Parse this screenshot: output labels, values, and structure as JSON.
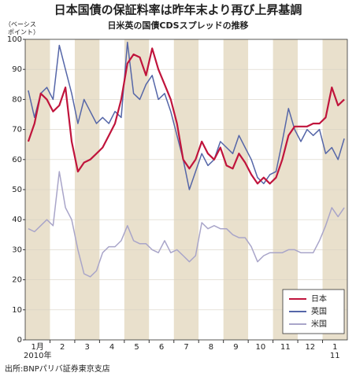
{
  "chart_data": {
    "type": "line",
    "title": "日本国債の保証料率は昨年末より再び上昇基調",
    "subtitle": "日米英の国債CDSスプレッドの推移",
    "ylabel": [
      "（ベーシス",
      "ポイント）"
    ],
    "x_labels": [
      "1月",
      "2",
      "3",
      "4",
      "5",
      "6",
      "7",
      "8",
      "9",
      "10",
      "11",
      "12",
      "1"
    ],
    "year_labels": [
      "2010年",
      "11"
    ],
    "points_per_month": 4,
    "source": "出所:BNPパリバ証券東京支店",
    "ylim": [
      0,
      100
    ],
    "yticks": [
      0,
      10,
      20,
      30,
      40,
      50,
      60,
      70,
      80,
      90,
      100
    ],
    "grid": true,
    "legend": "lower right",
    "series": [
      {
        "name": "日本",
        "color": "#c0143c",
        "values": [
          66,
          72,
          82,
          80,
          76,
          78,
          84,
          66,
          56,
          59,
          60,
          62,
          64,
          68,
          72,
          80,
          92,
          95,
          94,
          88,
          97,
          90,
          85,
          80,
          72,
          60,
          57,
          60,
          66,
          62,
          60,
          64,
          58,
          57,
          62,
          59,
          55,
          52,
          54,
          52,
          54,
          60,
          68,
          71,
          71,
          71,
          72,
          72,
          74,
          84,
          78,
          80
        ]
      },
      {
        "name": "英国",
        "color": "#5566a8",
        "values": [
          83,
          74,
          82,
          84,
          80,
          98,
          90,
          82,
          72,
          80,
          76,
          72,
          74,
          72,
          76,
          74,
          99,
          82,
          80,
          85,
          88,
          80,
          82,
          76,
          68,
          60,
          50,
          56,
          62,
          58,
          60,
          66,
          64,
          62,
          68,
          64,
          60,
          54,
          52,
          55,
          56,
          66,
          77,
          70,
          66,
          70,
          68,
          70,
          62,
          64,
          60,
          67
        ]
      },
      {
        "name": "米国",
        "color": "#a9a5c9",
        "values": [
          37,
          36,
          38,
          40,
          38,
          56,
          44,
          40,
          30,
          22,
          21,
          23,
          29,
          31,
          31,
          33,
          38,
          33,
          32,
          32,
          30,
          29,
          33,
          29,
          30,
          28,
          26,
          28,
          39,
          37,
          38,
          37,
          37,
          35,
          34,
          34,
          31,
          26,
          28,
          29,
          29,
          29,
          30,
          30,
          29,
          29,
          29,
          33,
          38,
          44,
          41,
          44
        ]
      }
    ]
  }
}
